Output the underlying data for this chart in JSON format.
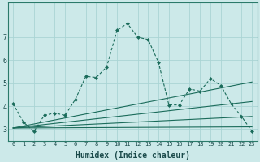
{
  "xlabel": "Humidex (Indice chaleur)",
  "bg_color": "#cce9e9",
  "grid_color": "#aad4d4",
  "line_color": "#1a6b5a",
  "xlim": [
    -0.5,
    23.5
  ],
  "ylim": [
    2.5,
    8.5
  ],
  "yticks": [
    3,
    4,
    5,
    6,
    7
  ],
  "xticks": [
    0,
    1,
    2,
    3,
    4,
    5,
    6,
    7,
    8,
    9,
    10,
    11,
    12,
    13,
    14,
    15,
    16,
    17,
    18,
    19,
    20,
    21,
    22,
    23
  ],
  "series": [
    {
      "x": [
        0,
        1,
        2,
        3,
        4,
        5,
        6,
        7,
        8,
        9,
        10,
        11,
        12,
        13,
        14,
        15,
        16,
        17,
        18,
        19,
        20,
        21,
        22,
        23
      ],
      "y": [
        4.1,
        3.3,
        2.9,
        3.6,
        3.7,
        3.6,
        4.3,
        5.3,
        5.25,
        5.7,
        7.3,
        7.6,
        7.0,
        6.9,
        5.9,
        4.05,
        4.05,
        4.75,
        4.65,
        5.2,
        4.9,
        4.1,
        3.55,
        2.9
      ],
      "style": "dotted",
      "marker": "D",
      "markersize": 2.5
    },
    {
      "x": [
        0,
        23
      ],
      "y": [
        3.05,
        3.1
      ],
      "style": "solid",
      "marker": null
    },
    {
      "x": [
        0,
        23
      ],
      "y": [
        3.05,
        3.55
      ],
      "style": "solid",
      "marker": null
    },
    {
      "x": [
        0,
        23
      ],
      "y": [
        3.05,
        4.2
      ],
      "style": "solid",
      "marker": null
    },
    {
      "x": [
        0,
        23
      ],
      "y": [
        3.05,
        5.05
      ],
      "style": "solid",
      "marker": null
    }
  ]
}
